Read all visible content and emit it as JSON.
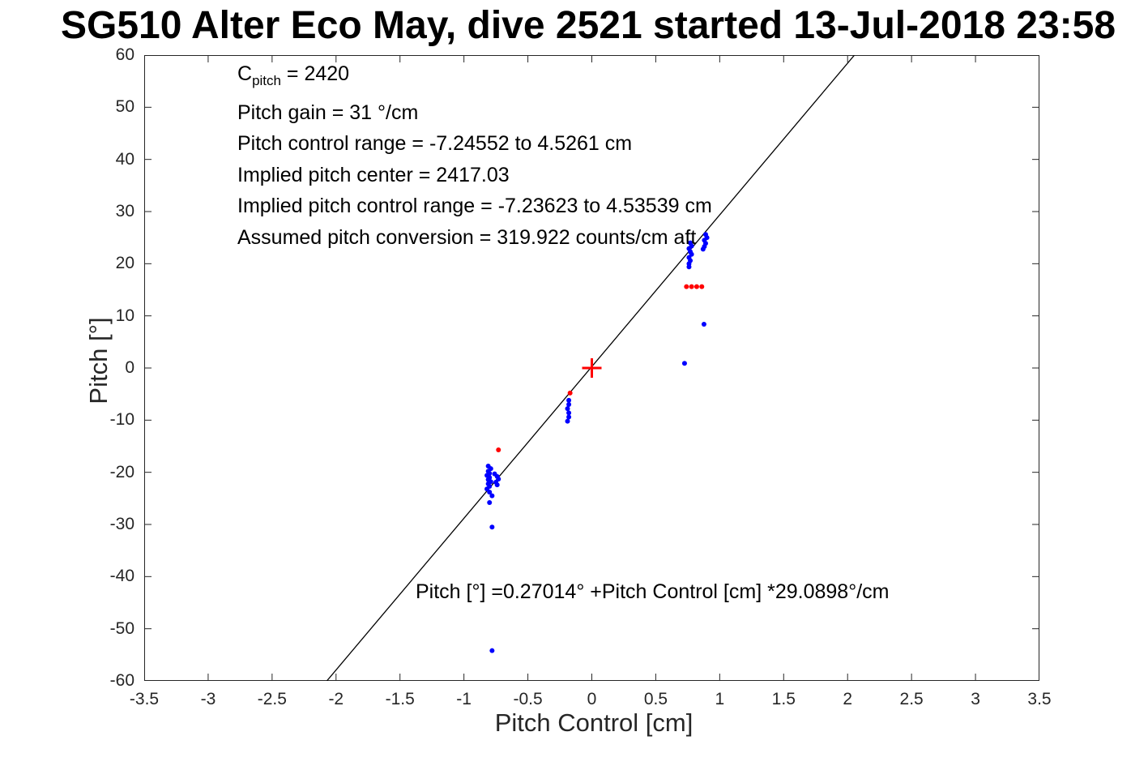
{
  "title": "SG510 Alter Eco May, dive 2521 started 13-Jul-2018 23:58",
  "annotations": {
    "c_pitch": {
      "pre": "C",
      "sub": "pitch",
      "post": " = 2420"
    },
    "info_lines": [
      "Pitch gain = 31 °/cm",
      "Pitch control range = -7.24552 to 4.5261 cm",
      "Implied pitch center = 2417.03",
      "Implied pitch control range = -7.23623 to 4.53539 cm",
      "Assumed pitch conversion = 319.922 counts/cm aft"
    ],
    "fit_label": "Pitch [°] =0.27014° +Pitch Control [cm] *29.0898°/cm"
  },
  "chart_data": {
    "type": "scatter",
    "title": "SG510 Alter Eco May, dive 2521 started 13-Jul-2018 23:58",
    "xlabel": "Pitch Control [cm]",
    "ylabel": "Pitch [°]",
    "xlim": [
      -3.5,
      3.5
    ],
    "ylim": [
      -60,
      60
    ],
    "grid": false,
    "legend": "none",
    "x_ticks": [
      -3.5,
      -3,
      -2.5,
      -2,
      -1.5,
      -1,
      -0.5,
      0,
      0.5,
      1,
      1.5,
      2,
      2.5,
      3,
      3.5
    ],
    "x_tick_labels": [
      "-3.5",
      "-3",
      "-2.5",
      "-2",
      "-1.5",
      "-1",
      "-0.5",
      "0",
      "0.5",
      "1",
      "1.5",
      "2",
      "2.5",
      "3",
      "3.5"
    ],
    "y_ticks": [
      -60,
      -50,
      -40,
      -30,
      -20,
      -10,
      0,
      10,
      20,
      30,
      40,
      50,
      60
    ],
    "y_tick_labels": [
      "-60",
      "-50",
      "-40",
      "-30",
      "-20",
      "-10",
      "0",
      "10",
      "20",
      "30",
      "40",
      "50",
      "60"
    ],
    "fit_line": {
      "slope": 29.0898,
      "intercept": 0.27014,
      "color": "#000000"
    },
    "colors": {
      "observed": "#0000ff",
      "flagged": "#ff0000",
      "fit": "#000000"
    },
    "series": [
      {
        "name": "observed-pitch",
        "marker": "dot",
        "color": "#0000ff",
        "points": [
          [
            -0.81,
            -18.8
          ],
          [
            -0.79,
            -19.3
          ],
          [
            -0.81,
            -19.8
          ],
          [
            -0.8,
            -20.2
          ],
          [
            -0.82,
            -20.6
          ],
          [
            -0.8,
            -21.0
          ],
          [
            -0.81,
            -21.4
          ],
          [
            -0.79,
            -21.8
          ],
          [
            -0.81,
            -22.2
          ],
          [
            -0.8,
            -22.7
          ],
          [
            -0.82,
            -23.2
          ],
          [
            -0.8,
            -23.8
          ],
          [
            -0.78,
            -24.5
          ],
          [
            -0.76,
            -20.3
          ],
          [
            -0.74,
            -20.8
          ],
          [
            -0.73,
            -21.3
          ],
          [
            -0.75,
            -21.9
          ],
          [
            -0.74,
            -22.4
          ],
          [
            -0.8,
            -25.8
          ],
          [
            -0.78,
            -30.5
          ],
          [
            -0.78,
            -54.2
          ],
          [
            -0.18,
            -6.2
          ],
          [
            -0.18,
            -7.0
          ],
          [
            -0.19,
            -7.8
          ],
          [
            -0.18,
            -8.6
          ],
          [
            -0.18,
            -9.4
          ],
          [
            -0.19,
            -10.2
          ],
          [
            0.76,
            19.4
          ],
          [
            0.76,
            20.0
          ],
          [
            0.77,
            20.6
          ],
          [
            0.76,
            21.2
          ],
          [
            0.78,
            21.8
          ],
          [
            0.77,
            22.3
          ],
          [
            0.76,
            22.9
          ],
          [
            0.78,
            23.4
          ],
          [
            0.77,
            24.0
          ],
          [
            0.87,
            22.8
          ],
          [
            0.88,
            23.3
          ],
          [
            0.89,
            23.9
          ],
          [
            0.88,
            24.5
          ],
          [
            0.9,
            25.0
          ],
          [
            0.89,
            25.6
          ],
          [
            0.877,
            8.4
          ],
          [
            0.725,
            0.9
          ]
        ]
      },
      {
        "name": "flagged-pitch",
        "marker": "dot",
        "color": "#ff0000",
        "points": [
          [
            -0.73,
            -15.7
          ],
          [
            -0.17,
            -4.8
          ],
          [
            0.74,
            15.6
          ],
          [
            0.78,
            15.6
          ],
          [
            0.82,
            15.6
          ],
          [
            0.86,
            15.6
          ]
        ]
      },
      {
        "name": "implied-center-marker",
        "marker": "plus",
        "color": "#ff0000",
        "points": [
          [
            0,
            0
          ]
        ]
      }
    ]
  }
}
